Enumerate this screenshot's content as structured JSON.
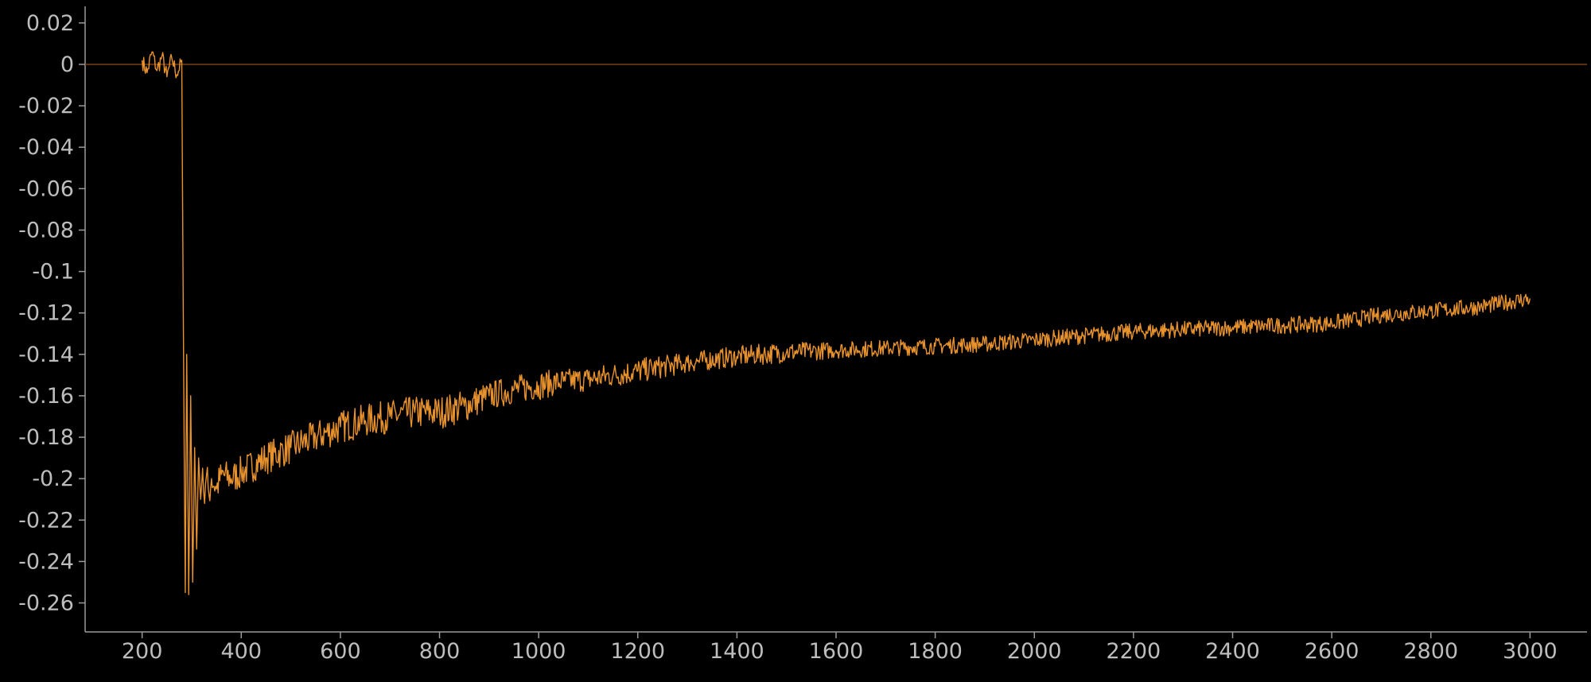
{
  "chart_data": {
    "type": "line",
    "title": "",
    "xlabel": "",
    "ylabel": "",
    "xlim": [
      85,
      3115
    ],
    "ylim": [
      -0.274,
      0.028
    ],
    "x_ticks": [
      200,
      400,
      600,
      800,
      1000,
      1200,
      1400,
      1600,
      1800,
      2000,
      2200,
      2400,
      2600,
      2800,
      3000
    ],
    "x_tick_labels": [
      "200",
      "400",
      "600",
      "800",
      "1000",
      "1200",
      "1400",
      "1600",
      "1800",
      "2000",
      "2200",
      "2400",
      "2600",
      "2800",
      "3000"
    ],
    "y_ticks": [
      0.02,
      0,
      -0.02,
      -0.04,
      -0.06,
      -0.08,
      -0.1,
      -0.12,
      -0.14,
      -0.16,
      -0.18,
      -0.2,
      -0.22,
      -0.24,
      -0.26
    ],
    "y_tick_labels": [
      "0.02",
      "0",
      "-0.02",
      "-0.04",
      "-0.06",
      "-0.08",
      "-0.1",
      "-0.12",
      "-0.14",
      "-0.16",
      "-0.18",
      "-0.2",
      "-0.22",
      "-0.24",
      "-0.26"
    ],
    "grid": false,
    "legend": "none",
    "reference_line": {
      "y": 0,
      "color": "#7a3f12"
    },
    "series": [
      {
        "color": "#e8922d",
        "x": [
          200,
          210,
          220,
          230,
          240,
          250,
          260,
          270,
          280,
          283,
          287,
          290,
          294,
          298,
          302,
          306,
          310,
          314,
          318,
          322,
          326,
          330,
          335,
          340,
          350,
          360,
          380,
          400,
          450,
          500,
          550,
          600,
          650,
          700,
          750,
          800,
          850,
          900,
          950,
          1000,
          1050,
          1100,
          1150,
          1200,
          1300,
          1400,
          1500,
          1600,
          1700,
          1800,
          1900,
          2000,
          2100,
          2200,
          2300,
          2400,
          2500,
          2600,
          2700,
          2800,
          2900,
          3000
        ],
        "y": [
          0.002,
          -0.004,
          0.006,
          -0.003,
          0.004,
          -0.006,
          0.003,
          -0.005,
          0.002,
          -0.12,
          -0.255,
          -0.14,
          -0.256,
          -0.16,
          -0.25,
          -0.185,
          -0.234,
          -0.19,
          -0.21,
          -0.195,
          -0.212,
          -0.198,
          -0.208,
          -0.2,
          -0.205,
          -0.198,
          -0.2,
          -0.197,
          -0.19,
          -0.185,
          -0.18,
          -0.175,
          -0.172,
          -0.17,
          -0.168,
          -0.168,
          -0.165,
          -0.16,
          -0.157,
          -0.155,
          -0.153,
          -0.152,
          -0.15,
          -0.148,
          -0.144,
          -0.141,
          -0.139,
          -0.138,
          -0.137,
          -0.136,
          -0.135,
          -0.133,
          -0.131,
          -0.129,
          -0.128,
          -0.127,
          -0.126,
          -0.125,
          -0.121,
          -0.119,
          -0.117,
          -0.113
        ],
        "noise_amplitude": [
          0.004,
          0.004,
          0.004,
          0.004,
          0.004,
          0.004,
          0.004,
          0.004,
          0.003,
          0,
          0,
          0,
          0,
          0,
          0,
          0,
          0,
          0,
          0,
          0.008,
          0.008,
          0.008,
          0.008,
          0.008,
          0.008,
          0.008,
          0.008,
          0.008,
          0.008,
          0.008,
          0.008,
          0.008,
          0.008,
          0.008,
          0.008,
          0.008,
          0.008,
          0.007,
          0.007,
          0.007,
          0.006,
          0.006,
          0.006,
          0.006,
          0.005,
          0.005,
          0.005,
          0.004,
          0.004,
          0.004,
          0.004,
          0.004,
          0.004,
          0.004,
          0.004,
          0.004,
          0.004,
          0.004,
          0.004,
          0.004,
          0.004,
          0.004
        ]
      }
    ]
  }
}
